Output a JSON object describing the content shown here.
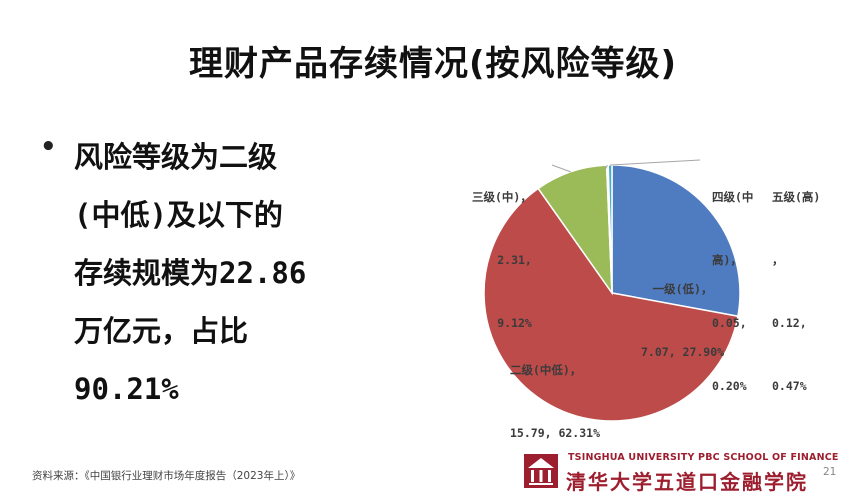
{
  "slide": {
    "title": "理财产品存续情况(按风险等级)",
    "bullet": {
      "marker": "•",
      "lines": [
        "风险等级为二级",
        "(中低)及以下的",
        "存续规模为22.86",
        "万亿元，占比",
        "90.21%"
      ]
    },
    "source": "资料来源：《中国银行业理财市场年度报告（2023年上）》",
    "page_number": "21",
    "logo": {
      "english": "TSINGHUA UNIVERSITY PBC SCHOOL OF FINANCE",
      "chinese": "清华大学五道口金融学院",
      "color": "#9d1e2e"
    }
  },
  "chart_data": {
    "type": "pie",
    "slices": [
      {
        "name": "一级(低)",
        "value": 7.07,
        "percent": 27.9,
        "color": "#4f7cc0",
        "label_lines": [
          "一级(低)，",
          "7.07, 27.90%"
        ]
      },
      {
        "name": "二级(中低)",
        "value": 15.79,
        "percent": 62.31,
        "color": "#bc4b4a",
        "label_lines": [
          "二级(中低)，",
          "15.79, 62.31%"
        ]
      },
      {
        "name": "三级(中)",
        "value": 2.31,
        "percent": 9.12,
        "color": "#9bbb59",
        "label_lines": [
          "三级(中)，",
          "2.31,",
          "9.12%"
        ]
      },
      {
        "name": "四级(中高)",
        "value": 0.05,
        "percent": 0.2,
        "color": "#8064a2",
        "label_lines": [
          "四级(中",
          "高)，",
          "0.05,",
          "0.20%"
        ]
      },
      {
        "name": "五级(高)",
        "value": 0.12,
        "percent": 0.47,
        "color": "#4bacc6",
        "label_lines": [
          "五级(高)",
          "，",
          "0.12,",
          "0.47%"
        ]
      }
    ]
  }
}
